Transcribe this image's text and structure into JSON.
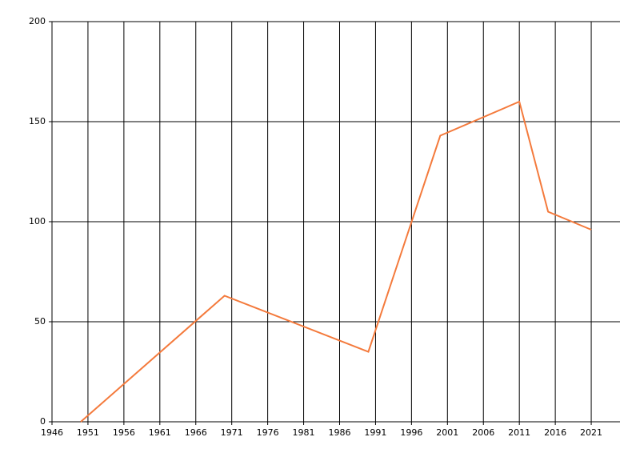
{
  "chart_data": {
    "type": "line",
    "x": [
      1950,
      1970,
      1990,
      2000,
      2011,
      2015,
      2021
    ],
    "series": [
      {
        "color": "#f47a3c",
        "values": [
          0,
          63,
          35,
          143,
          160,
          105,
          96
        ]
      }
    ],
    "xlim": [
      1946,
      2025
    ],
    "xticks": [
      1946,
      1951,
      1956,
      1961,
      1966,
      1971,
      1976,
      1981,
      1986,
      1991,
      1996,
      2001,
      2006,
      2011,
      2016,
      2021
    ],
    "ylim": [
      0,
      200
    ],
    "yticks": [
      0,
      50,
      100,
      150,
      200
    ],
    "grid": true
  }
}
